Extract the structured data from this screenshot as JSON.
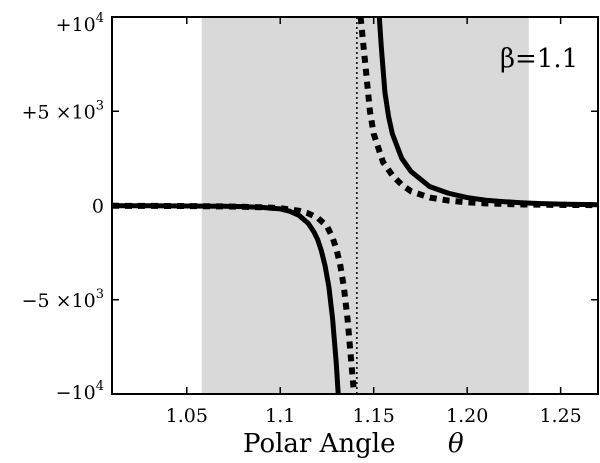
{
  "chart_data": {
    "type": "line",
    "title": "",
    "xlabel": "Polar Angle",
    "xlabel_symbol": "θ",
    "ylabel": "",
    "xlim": [
      1.01,
      1.27
    ],
    "ylim": [
      -10000,
      10000
    ],
    "x_ticks": [
      1.05,
      1.1,
      1.15,
      1.2,
      1.25
    ],
    "x_tick_labels": [
      "1.05",
      "1.1",
      "1.15",
      "1.20",
      "1.25"
    ],
    "y_ticks": [
      10000,
      5000,
      0,
      -5000,
      -10000
    ],
    "y_tick_labels": [
      {
        "base": "+10",
        "exp": "4"
      },
      {
        "base": "+5 ×10",
        "exp": "3"
      },
      {
        "base": "0",
        "exp": ""
      },
      {
        "base": "−5 ×10",
        "exp": "3"
      },
      {
        "base": "−10",
        "exp": "4"
      }
    ],
    "annotation": "β=1.1",
    "shaded_region": {
      "x": [
        1.058,
        1.233
      ],
      "color": "#d9d9d9"
    },
    "vertical_line": {
      "x": 1.141,
      "style": "dotted"
    },
    "grid": false,
    "legend": "none",
    "series": [
      {
        "style": "solid",
        "color": "#000000",
        "segments": [
          [
            [
              1.01,
              -10
            ],
            [
              1.03,
              -15
            ],
            [
              1.05,
              -25
            ],
            [
              1.07,
              -40
            ],
            [
              1.08,
              -60
            ],
            [
              1.09,
              -100
            ],
            [
              1.1,
              -180
            ],
            [
              1.105,
              -300
            ],
            [
              1.11,
              -520
            ],
            [
              1.115,
              -950
            ],
            [
              1.118,
              -1400
            ],
            [
              1.12,
              -1800
            ],
            [
              1.122,
              -2400
            ],
            [
              1.124,
              -3200
            ],
            [
              1.126,
              -4300
            ],
            [
              1.128,
              -6000
            ],
            [
              1.13,
              -8400
            ],
            [
              1.131,
              -10000
            ]
          ],
          [
            [
              1.153,
              10000
            ],
            [
              1.154,
              8500
            ],
            [
              1.156,
              6000
            ],
            [
              1.158,
              4700
            ],
            [
              1.16,
              3800
            ],
            [
              1.165,
              2500
            ],
            [
              1.17,
              1800
            ],
            [
              1.18,
              1000
            ],
            [
              1.19,
              650
            ],
            [
              1.2,
              420
            ],
            [
              1.21,
              280
            ],
            [
              1.22,
              200
            ],
            [
              1.23,
              140
            ],
            [
              1.24,
              100
            ],
            [
              1.25,
              70
            ],
            [
              1.27,
              40
            ]
          ]
        ]
      },
      {
        "style": "dashed",
        "color": "#000000",
        "segments": [
          [
            [
              1.01,
              -15
            ],
            [
              1.03,
              -20
            ],
            [
              1.05,
              -30
            ],
            [
              1.07,
              -50
            ],
            [
              1.09,
              -90
            ],
            [
              1.1,
              -140
            ],
            [
              1.11,
              -280
            ],
            [
              1.115,
              -420
            ],
            [
              1.12,
              -650
            ],
            [
              1.125,
              -1100
            ],
            [
              1.128,
              -1700
            ],
            [
              1.13,
              -2300
            ],
            [
              1.132,
              -3100
            ],
            [
              1.134,
              -4300
            ],
            [
              1.136,
              -6000
            ],
            [
              1.138,
              -8300
            ],
            [
              1.1395,
              -10000
            ]
          ],
          [
            [
              1.143,
              10000
            ],
            [
              1.144,
              9000
            ],
            [
              1.146,
              7000
            ],
            [
              1.148,
              5000
            ],
            [
              1.15,
              3800
            ],
            [
              1.155,
              2300
            ],
            [
              1.16,
              1600
            ],
            [
              1.165,
              1100
            ],
            [
              1.17,
              750
            ],
            [
              1.18,
              420
            ],
            [
              1.19,
              260
            ],
            [
              1.2,
              170
            ],
            [
              1.21,
              110
            ],
            [
              1.22,
              80
            ],
            [
              1.23,
              55
            ],
            [
              1.25,
              30
            ],
            [
              1.27,
              20
            ]
          ]
        ]
      }
    ]
  }
}
